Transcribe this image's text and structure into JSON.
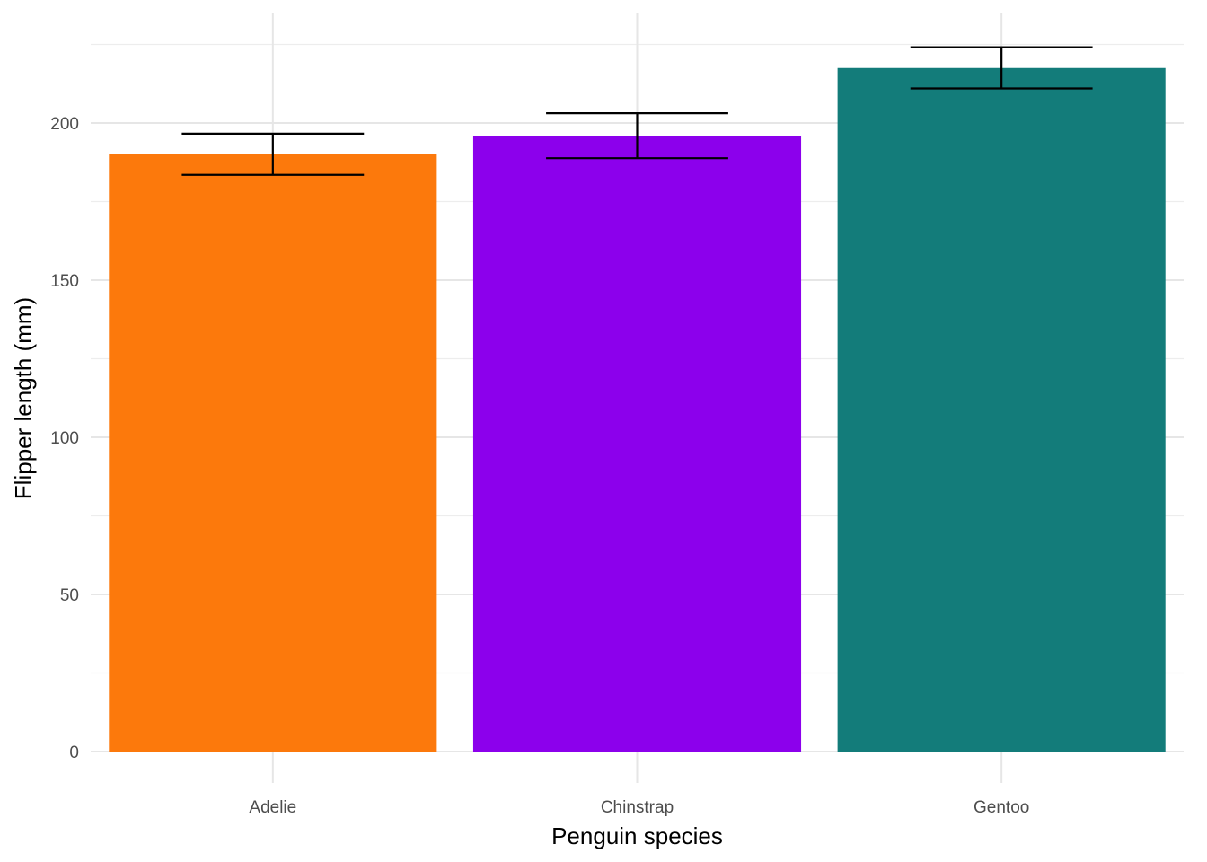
{
  "chart_data": {
    "type": "bar",
    "title": "",
    "xlabel": "Penguin species",
    "ylabel": "Flipper length (mm)",
    "categories": [
      "Adelie",
      "Chinstrap",
      "Gentoo"
    ],
    "values": [
      190,
      196,
      217.5
    ],
    "error_low": [
      183.5,
      188.8,
      211
    ],
    "error_high": [
      196.6,
      203.1,
      224.1
    ],
    "colors": [
      "#FC790C",
      "#8C00EC",
      "#137C7A"
    ],
    "ylim": [
      0,
      226
    ],
    "yticks": [
      0,
      50,
      100,
      150,
      200
    ],
    "ytick_labels": [
      "0",
      "50",
      "100",
      "150",
      "200"
    ],
    "grid": true,
    "legend": "none"
  }
}
